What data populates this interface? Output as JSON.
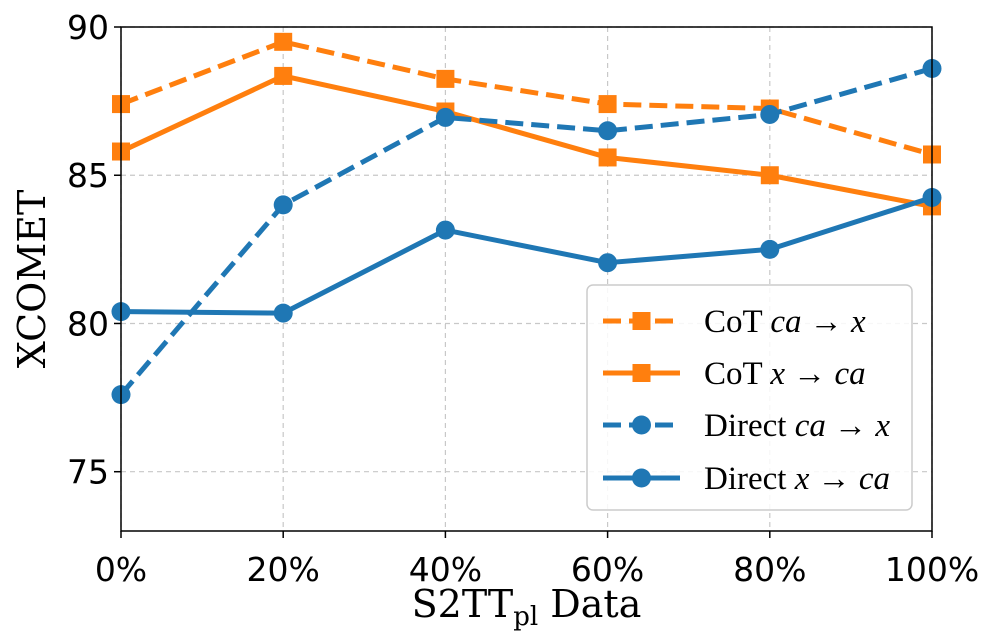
{
  "chart_data": {
    "type": "line",
    "title": "",
    "xlabel": "S2TT",
    "xlabel_sub": "pl",
    "xlabel_suffix": " Data",
    "ylabel": "XCOMET",
    "categories": [
      "0%",
      "20%",
      "40%",
      "60%",
      "80%",
      "100%"
    ],
    "x": [
      0,
      20,
      40,
      60,
      80,
      100
    ],
    "xlim": [
      0,
      100
    ],
    "ylim": [
      73,
      90
    ],
    "yticks": [
      75,
      80,
      85,
      90
    ],
    "grid": true,
    "legend_position": "bottom-right",
    "series": [
      {
        "name": "CoT ca→x",
        "label_prefix": "CoT ",
        "label_math": "ca → x",
        "values": [
          87.4,
          89.5,
          88.25,
          87.4,
          87.25,
          85.7
        ],
        "color": "#ff7f0e",
        "dashed": true,
        "marker": "square"
      },
      {
        "name": "CoT x→ca",
        "label_prefix": "CoT ",
        "label_math": "x → ca",
        "values": [
          85.8,
          88.35,
          87.15,
          85.6,
          85.0,
          83.95
        ],
        "color": "#ff7f0e",
        "dashed": false,
        "marker": "square"
      },
      {
        "name": "Direct ca→x",
        "label_prefix": "Direct ",
        "label_math": "ca → x",
        "values": [
          77.6,
          84.0,
          86.95,
          86.5,
          87.05,
          88.6
        ],
        "color": "#1f77b4",
        "dashed": true,
        "marker": "circle"
      },
      {
        "name": "Direct x→ca",
        "label_prefix": "Direct ",
        "label_math": "x → ca",
        "values": [
          80.4,
          80.35,
          83.15,
          82.05,
          82.5,
          84.25
        ],
        "color": "#1f77b4",
        "dashed": false,
        "marker": "circle"
      }
    ]
  }
}
